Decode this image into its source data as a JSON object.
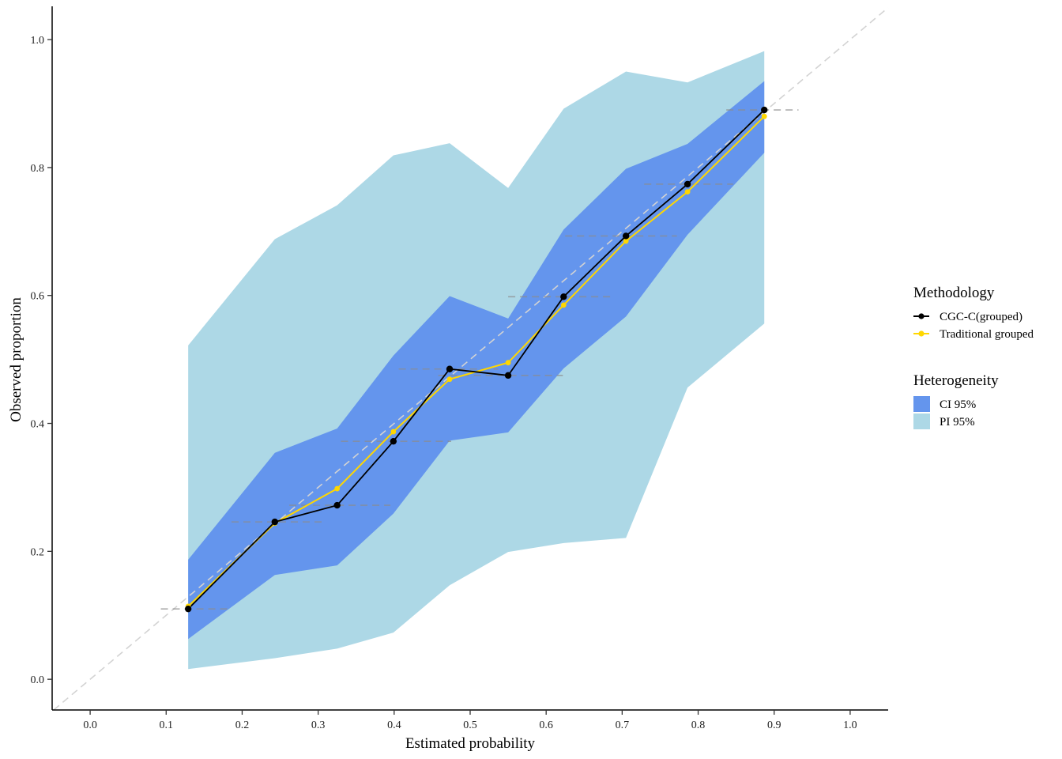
{
  "chart_data": {
    "type": "line",
    "title": "",
    "xlabel": "Estimated probability",
    "ylabel": "Observed proportion",
    "xlim": [
      -0.05,
      1.05
    ],
    "ylim": [
      -0.048,
      1.052
    ],
    "xticks": [
      0.0,
      0.1,
      0.2,
      0.3,
      0.4,
      0.5,
      0.6,
      0.7,
      0.8,
      0.9,
      1.0
    ],
    "xtick_labels": [
      "0.0",
      "0.1",
      "0.2",
      "0.3",
      "0.4",
      "0.5",
      "0.6",
      "0.7",
      "0.8",
      "0.9",
      "1.0"
    ],
    "yticks": [
      0.0,
      0.2,
      0.4,
      0.6,
      0.8,
      1.0
    ],
    "ytick_labels": [
      "0.0",
      "0.2",
      "0.4",
      "0.6",
      "0.8",
      "1.0"
    ],
    "grid": false,
    "reference_line": "diagonal y = x (dashed, light grey)",
    "x": [
      0.129,
      0.243,
      0.325,
      0.399,
      0.473,
      0.55,
      0.623,
      0.705,
      0.786,
      0.887
    ],
    "series": [
      {
        "name": "CGC-C(grouped)",
        "color": "#000000",
        "values": [
          0.11,
          0.246,
          0.272,
          0.372,
          0.485,
          0.475,
          0.598,
          0.693,
          0.774,
          0.89
        ]
      },
      {
        "name": "Traditional grouped",
        "color": "#FFD700",
        "values": [
          0.114,
          0.244,
          0.298,
          0.387,
          0.469,
          0.495,
          0.585,
          0.685,
          0.762,
          0.88
        ]
      }
    ],
    "bands": [
      {
        "name": "PI 95%",
        "color": "#ADD8E6",
        "lower": [
          0.016,
          0.033,
          0.048,
          0.073,
          0.147,
          0.199,
          0.213,
          0.221,
          0.456,
          0.556
        ],
        "upper": [
          0.522,
          0.688,
          0.741,
          0.819,
          0.838,
          0.768,
          0.892,
          0.95,
          0.933,
          0.982
        ]
      },
      {
        "name": "CI 95%",
        "color": "#6495ED",
        "lower": [
          0.063,
          0.163,
          0.178,
          0.259,
          0.373,
          0.386,
          0.486,
          0.567,
          0.695,
          0.823
        ],
        "upper": [
          0.187,
          0.354,
          0.392,
          0.506,
          0.599,
          0.564,
          0.703,
          0.798,
          0.837,
          0.935
        ]
      }
    ],
    "group_ranges": [
      {
        "x_from": 0.093,
        "x_to": 0.185,
        "y": 0.11
      },
      {
        "x_from": 0.186,
        "x_to": 0.31,
        "y": 0.246
      },
      {
        "x_from": 0.262,
        "x_to": 0.395,
        "y": 0.272
      },
      {
        "x_from": 0.33,
        "x_to": 0.475,
        "y": 0.372
      },
      {
        "x_from": 0.406,
        "x_to": 0.537,
        "y": 0.485
      },
      {
        "x_from": 0.458,
        "x_to": 0.622,
        "y": 0.475
      },
      {
        "x_from": 0.55,
        "x_to": 0.69,
        "y": 0.598
      },
      {
        "x_from": 0.625,
        "x_to": 0.772,
        "y": 0.693
      },
      {
        "x_from": 0.729,
        "x_to": 0.846,
        "y": 0.774
      },
      {
        "x_from": 0.837,
        "x_to": 0.932,
        "y": 0.89
      }
    ],
    "legend": {
      "placement": "right",
      "groups": [
        {
          "title": "Methodology",
          "entries": [
            {
              "label": "CGC-C(grouped)",
              "color": "#000000",
              "kind": "line-point"
            },
            {
              "label": "Traditional grouped",
              "color": "#FFD700",
              "kind": "line-point"
            }
          ]
        },
        {
          "title": "Heterogeneity",
          "entries": [
            {
              "label": "CI 95%",
              "color": "#6495ED",
              "kind": "fill"
            },
            {
              "label": "PI 95%",
              "color": "#ADD8E6",
              "kind": "fill"
            }
          ]
        }
      ]
    }
  }
}
